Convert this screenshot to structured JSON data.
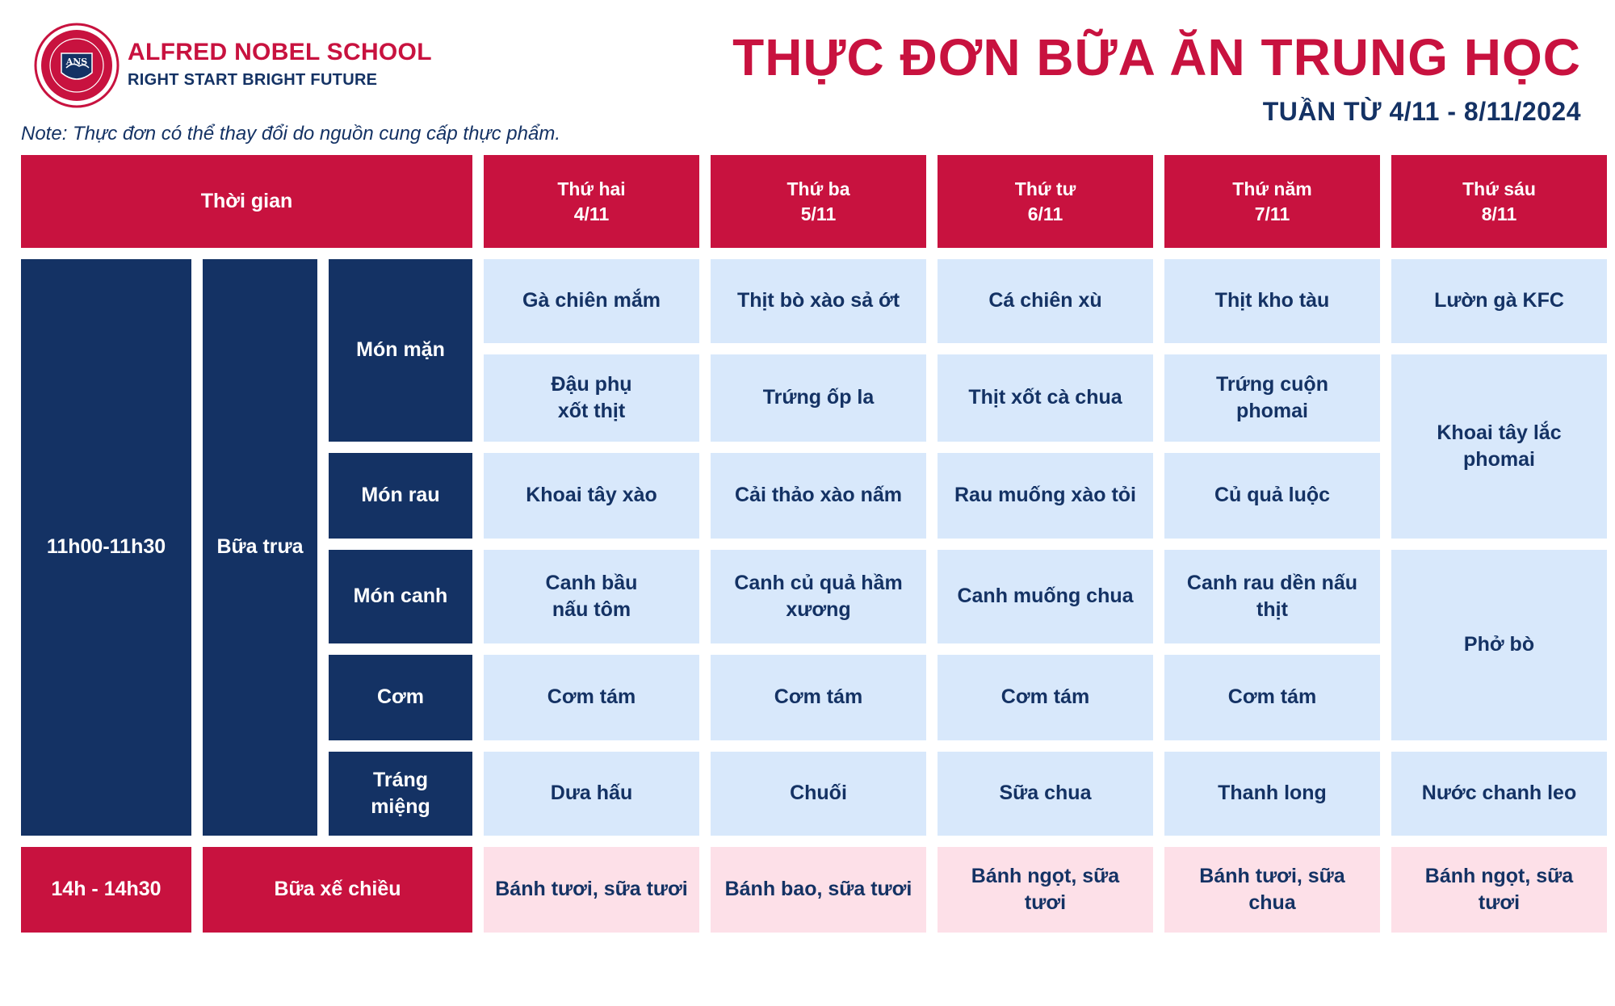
{
  "header": {
    "school_name": "ALFRED NOBEL SCHOOL",
    "slogan": "RIGHT START  BRIGHT FUTURE",
    "logo_text": "ANS",
    "title": "THỰC ĐƠN BỮA ĂN TRUNG HỌC",
    "week": "TUẦN TỪ 4/11 - 8/11/2024",
    "note": "Note: Thực đơn có thể thay đổi do nguồn cung cấp thực phẩm."
  },
  "colors": {
    "brand_red": "#c8123f",
    "navy": "#143264",
    "light_blue": "#d8e8fb",
    "pink": "#fde0e8"
  },
  "table": {
    "time_header": "Thời gian",
    "days": [
      {
        "name": "Thứ hai",
        "date": "4/11"
      },
      {
        "name": "Thứ ba",
        "date": "5/11"
      },
      {
        "name": "Thứ tư",
        "date": "6/11"
      },
      {
        "name": "Thứ năm",
        "date": "7/11"
      },
      {
        "name": "Thứ sáu",
        "date": "8/11"
      }
    ],
    "lunch": {
      "time": "11h00-11h30",
      "meal": "Bữa trưa",
      "categories": {
        "main": "Món mặn",
        "vegetable": "Món rau",
        "soup": "Món canh",
        "rice": "Cơm",
        "dessert": "Tráng\nmiệng"
      },
      "main1": [
        "Gà chiên mắm",
        "Thịt bò xào sả ớt",
        "Cá chiên xù",
        "Thịt kho tàu",
        "Lườn gà KFC"
      ],
      "main2": [
        "Đậu phụ\n xốt thịt",
        "Trứng ốp la",
        "Thịt xốt cà chua",
        "Trứng cuộn\nphomai"
      ],
      "vegetable": [
        "Khoai tây xào",
        "Cải thảo xào nấm",
        "Rau muống xào tỏi",
        "Củ quả luộc"
      ],
      "friday_main2_veg": "Khoai tây lắc\nphomai",
      "soup": [
        "Canh bầu\n nấu tôm",
        "Canh củ quả hầm\nxương",
        "Canh muống chua",
        "Canh rau dền nấu\nthịt"
      ],
      "rice": [
        "Cơm tám",
        "Cơm tám",
        "Cơm tám",
        "Cơm tám"
      ],
      "friday_soup_rice": "Phở bò",
      "dessert": [
        "Dưa hấu",
        "Chuối",
        "Sữa chua",
        "Thanh long",
        "Nước chanh leo"
      ]
    },
    "afternoon": {
      "time": "14h - 14h30",
      "meal": "Bữa xế chiều",
      "items": [
        "Bánh tươi, sữa tươi",
        "Bánh bao, sữa tươi",
        "Bánh ngọt, sữa\ntươi",
        "Bánh tươi, sữa\nchua",
        "Bánh ngọt, sữa\ntươi"
      ]
    }
  }
}
